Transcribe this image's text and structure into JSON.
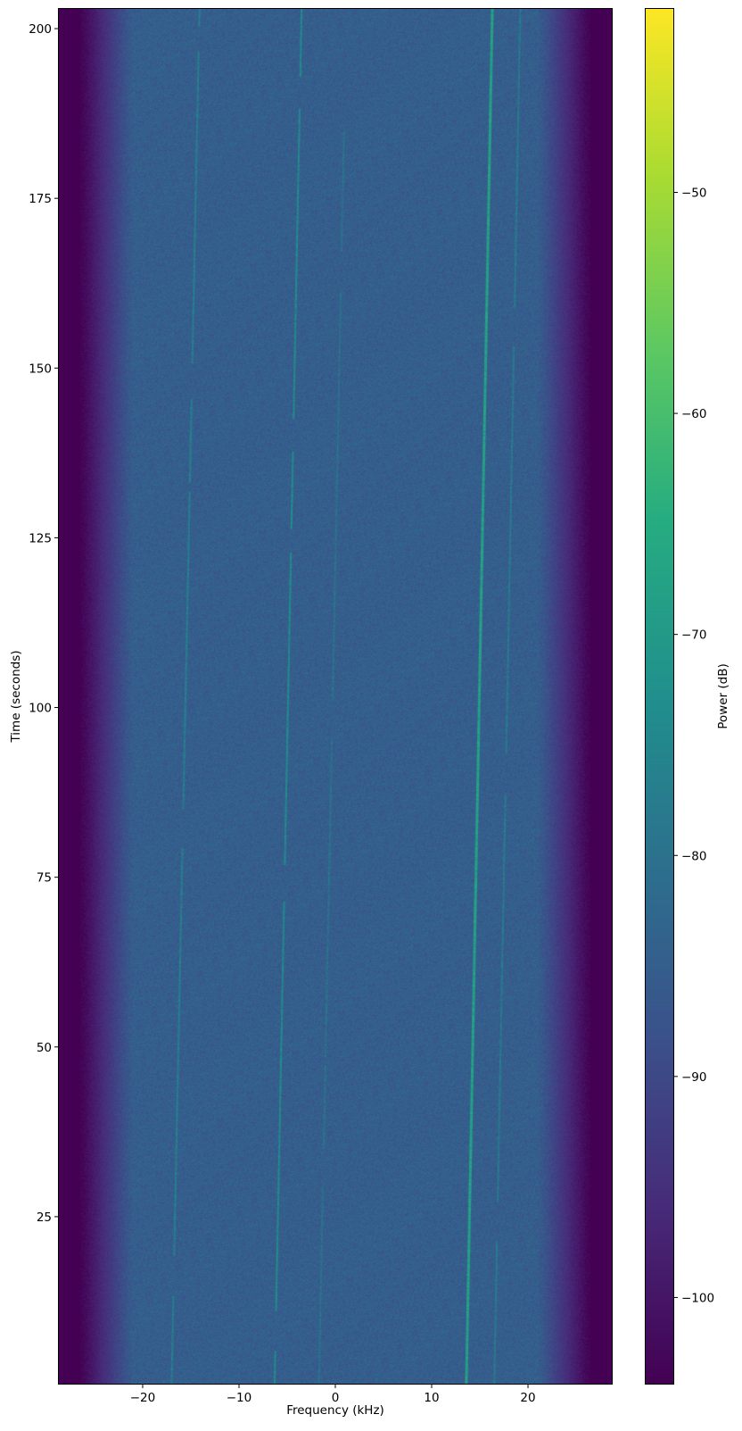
{
  "chart_data": {
    "type": "heatmap",
    "subtype": "spectrogram",
    "title": "",
    "xlabel": "Frequency (kHz)",
    "ylabel": "Time (seconds)",
    "xlim": [
      -28.7,
      28.7
    ],
    "ylim": [
      0.4,
      202.9
    ],
    "xticks": [
      -20,
      -10,
      0,
      10,
      20
    ],
    "xtick_labels": [
      "−20",
      "−10",
      "0",
      "10",
      "20"
    ],
    "yticks": [
      25,
      50,
      75,
      100,
      125,
      150,
      175,
      200
    ],
    "ytick_labels": [
      "25",
      "50",
      "75",
      "100",
      "125",
      "150",
      "175",
      "200"
    ],
    "colormap": "viridis",
    "colorbar": {
      "label": "Power (dB)",
      "range": [
        -103.9,
        -41.7
      ],
      "ticks": [
        -50,
        -60,
        -70,
        -80,
        -90,
        -100
      ],
      "tick_labels": [
        "−50",
        "−60",
        "−70",
        "−80",
        "−90",
        "−100"
      ]
    },
    "noise_floor_db": -85,
    "passband_edge_khz": [
      -24,
      24
    ],
    "out_of_band_db": -104,
    "traces": [
      {
        "start": [
          13.6,
          0.4
        ],
        "end": [
          16.3,
          202.9
        ],
        "power_db": -68
      },
      {
        "start": [
          -6.3,
          0.4
        ],
        "end": [
          -3.5,
          202.9
        ],
        "power_db": -74
      },
      {
        "start": [
          -17.0,
          0.4
        ],
        "end": [
          -14.1,
          202.9
        ],
        "power_db": -77
      },
      {
        "start": [
          16.5,
          0.4
        ],
        "end": [
          19.2,
          202.9
        ],
        "power_db": -78
      },
      {
        "start": [
          -1.7,
          0.4
        ],
        "end": [
          0.9,
          185
        ],
        "power_db": -80
      }
    ],
    "grid": false
  }
}
